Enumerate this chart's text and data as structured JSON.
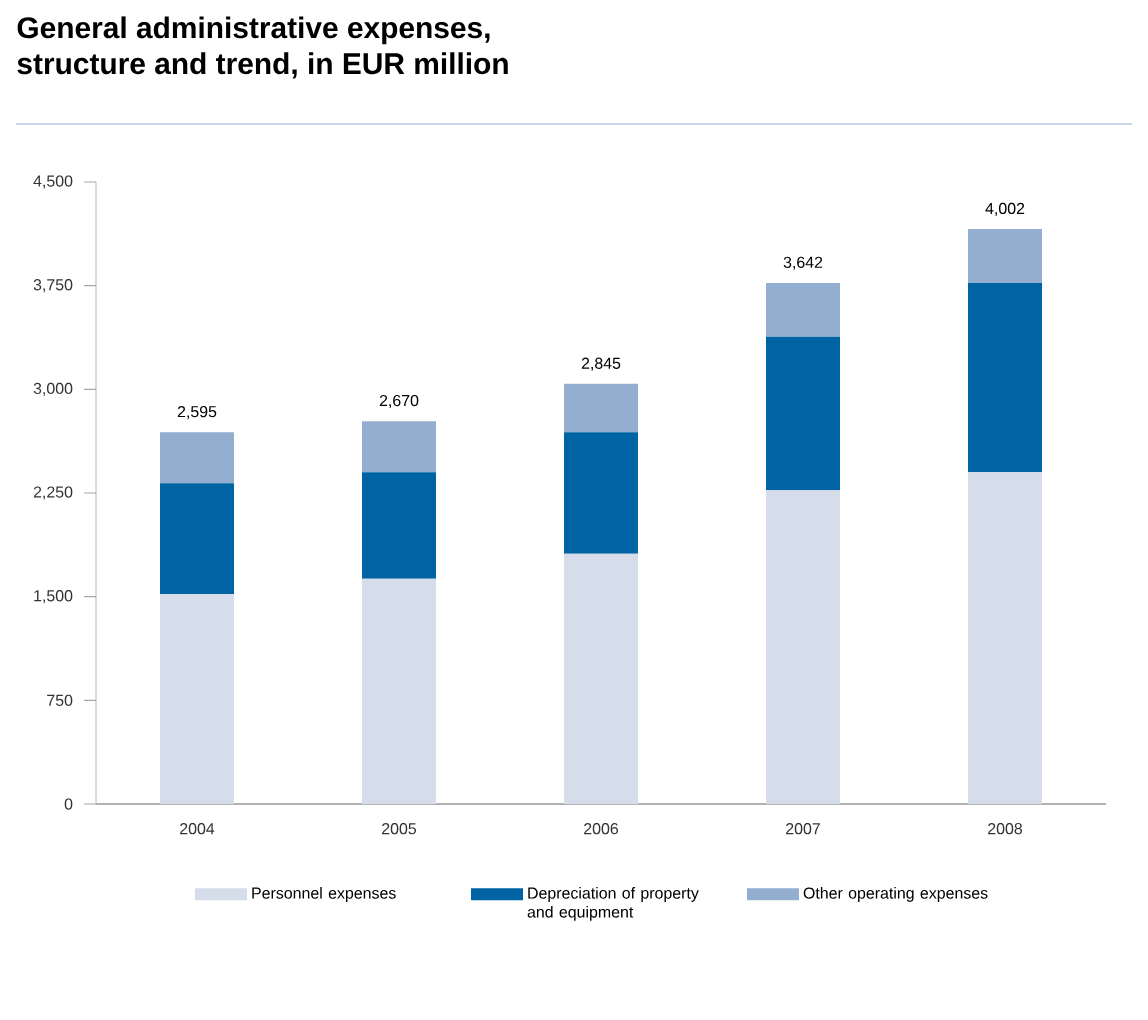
{
  "chart_data": {
    "type": "bar",
    "stacked": true,
    "title": "General administrative expenses,\nstructure and trend, in EUR million",
    "categories": [
      "2004",
      "2005",
      "2006",
      "2007",
      "2008"
    ],
    "series": [
      {
        "name": "Personnel expenses",
        "color": "#d5dcea",
        "values": [
          1520,
          1630,
          1810,
          2270,
          2400
        ]
      },
      {
        "name": "Depreciation of property and equipment",
        "color": "#0063a3",
        "values": [
          800,
          770,
          880,
          1110,
          1370
        ]
      },
      {
        "name": "Other operating expenses",
        "color": "#94aed0",
        "values": [
          370,
          370,
          350,
          390,
          390
        ]
      }
    ],
    "annotations": [
      {
        "text": "2,595",
        "x": "2004",
        "y": 2690
      },
      {
        "text": "2,670",
        "x": "2005",
        "y": 2770
      },
      {
        "text": "2,845",
        "x": "2006",
        "y": 3040
      },
      {
        "text": "3,642",
        "x": "2007",
        "y": 3770
      },
      {
        "text": "4,002",
        "x": "2008",
        "y": 4160
      }
    ],
    "ylim": [
      0,
      4500
    ],
    "yticks": [
      0,
      750,
      {
        "value": 1500,
        "label": "1,500"
      },
      {
        "value": 2250,
        "label": "2,250"
      },
      {
        "value": 3000,
        "label": "3,000"
      },
      {
        "value": 3750,
        "label": "3,750"
      },
      {
        "value": 4500,
        "label": "4,500"
      }
    ],
    "grid": false,
    "legend": "bottom"
  }
}
